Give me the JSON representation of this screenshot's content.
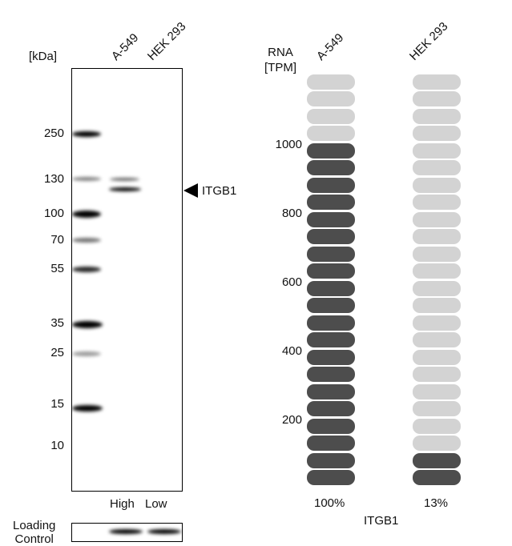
{
  "blot": {
    "unit_label": "[kDa]",
    "lanes": [
      "A-549",
      "HEK 293"
    ],
    "markers": [
      "250",
      "130",
      "100",
      "70",
      "55",
      "35",
      "25",
      "15",
      "10"
    ],
    "target_label": "ITGB1",
    "expression_labels": [
      "High",
      "Low"
    ],
    "loading_control_label": [
      "Loading",
      "Control"
    ]
  },
  "chart_data": {
    "type": "bar",
    "ylabel": "RNA [TPM]",
    "xlabel": "ITGB1",
    "categories": [
      "A-549",
      "HEK 293"
    ],
    "yticks": [
      "200",
      "400",
      "600",
      "800",
      "1000"
    ],
    "values_percent": [
      100,
      13
    ],
    "value_labels": [
      "100%",
      "13%"
    ],
    "segments_total": 24,
    "segments_filled": [
      20,
      2
    ],
    "colors": {
      "filled": "#4d4d4d",
      "empty": "#d3d3d3"
    }
  }
}
